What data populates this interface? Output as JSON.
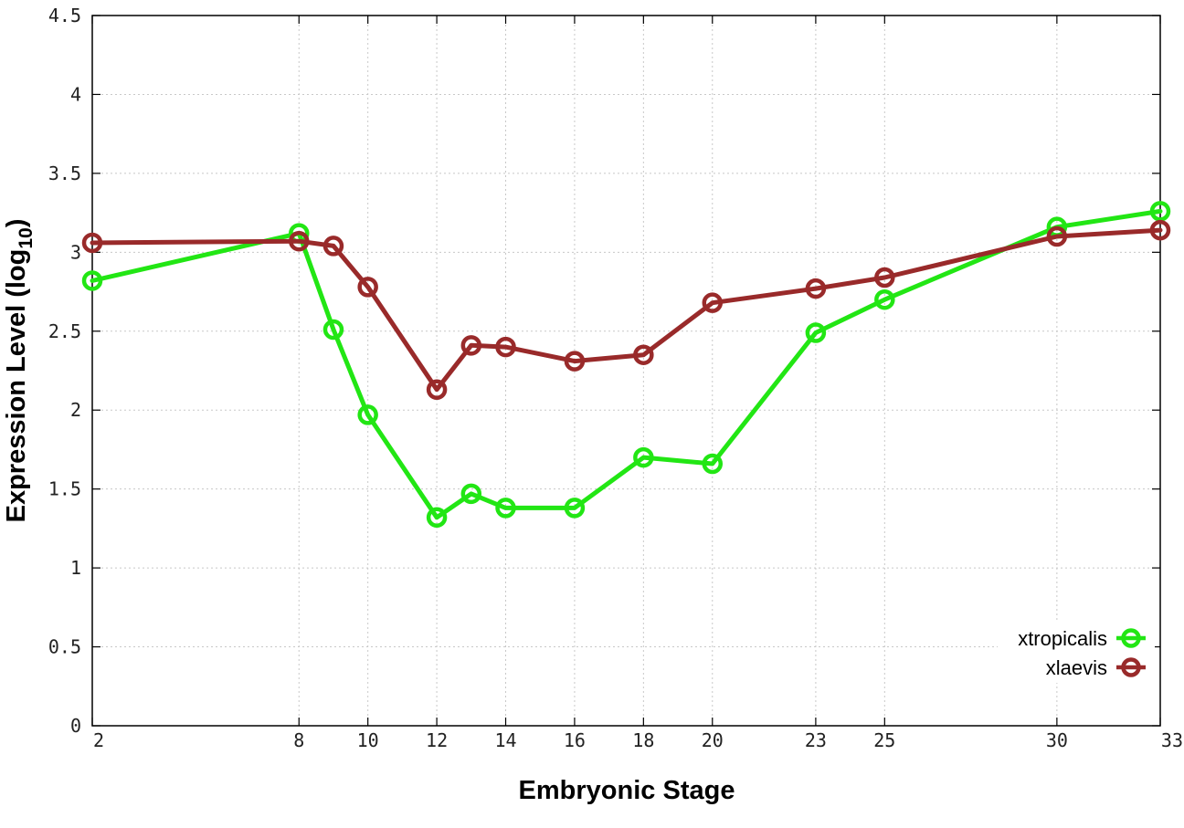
{
  "chart_data": {
    "type": "line",
    "xlabel": "Embryonic Stage",
    "ylabel_main": "Expression Level (log",
    "ylabel_sub": "10",
    "ylabel_close": ")",
    "x_ticks": [
      "2",
      "8",
      "10",
      "12",
      "14",
      "16",
      "18",
      "20",
      "23",
      "25",
      "30",
      "33"
    ],
    "y_ticks": [
      "0",
      "0.5",
      "1",
      "1.5",
      "2",
      "2.5",
      "3",
      "3.5",
      "4",
      "4.5"
    ],
    "ylim": [
      0,
      4.5
    ],
    "xlim": [
      2,
      33
    ],
    "grid": true,
    "legend_position": "bottom-right",
    "x": [
      2,
      8,
      9,
      10,
      12,
      13,
      14,
      16,
      18,
      20,
      23,
      25,
      30,
      33
    ],
    "series": [
      {
        "name": "xtropicalis",
        "color": "#22e614",
        "values": [
          2.82,
          3.12,
          2.51,
          1.97,
          1.32,
          1.47,
          1.38,
          1.38,
          1.7,
          1.66,
          2.49,
          2.7,
          3.16,
          3.26
        ]
      },
      {
        "name": "xlaevis",
        "color": "#992a2a",
        "values": [
          3.06,
          3.07,
          3.04,
          2.78,
          2.13,
          2.41,
          2.4,
          2.31,
          2.35,
          2.68,
          2.77,
          2.84,
          3.1,
          3.14
        ]
      }
    ]
  }
}
